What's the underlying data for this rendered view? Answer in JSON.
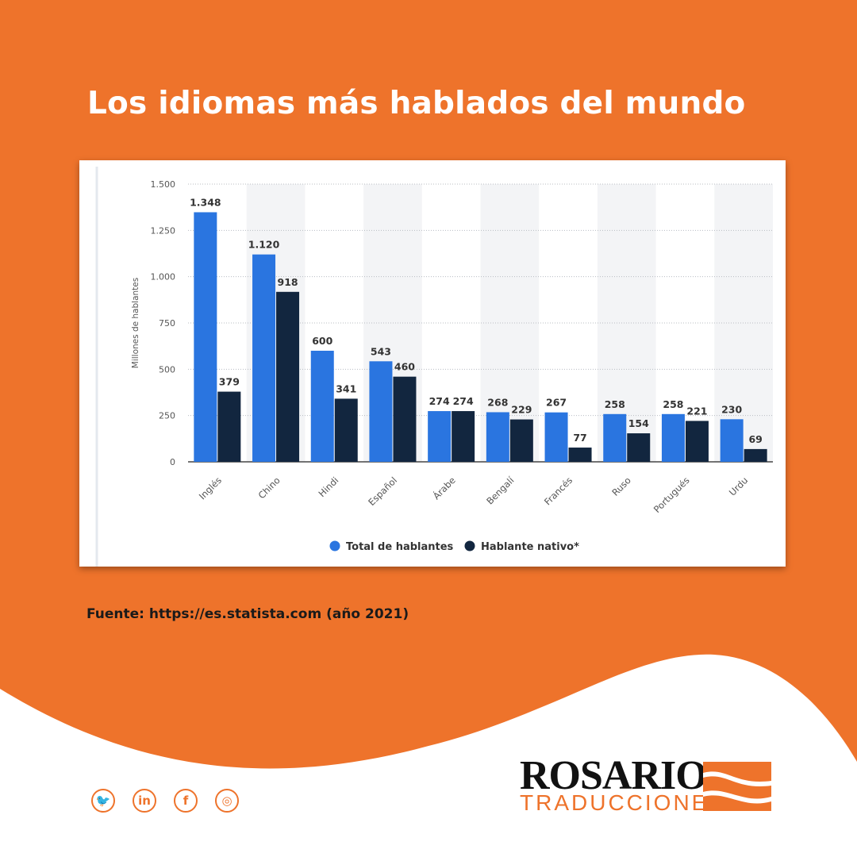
{
  "page": {
    "title": "Los idiomas más hablados del mundo",
    "source": "Fuente: https://es.statista.com (año 2021)",
    "colors": {
      "background": "#ee732b",
      "series_total": "#2a75e0",
      "series_native": "#12263f"
    }
  },
  "brand": {
    "name": "ROSARIO",
    "subtitle": "TRADUCCIONES"
  },
  "social": [
    {
      "name": "twitter-icon",
      "glyph": "🐦"
    },
    {
      "name": "linkedin-icon",
      "glyph": "in"
    },
    {
      "name": "facebook-icon",
      "glyph": "f"
    },
    {
      "name": "instagram-icon",
      "glyph": "◎"
    }
  ],
  "chart_data": {
    "type": "bar",
    "categories": [
      "Inglés",
      "Chino",
      "Hindi",
      "Español",
      "Árabe",
      "Bengalí",
      "Francés",
      "Ruso",
      "Portugués",
      "Urdu"
    ],
    "series": [
      {
        "name": "Total de hablantes",
        "color": "#2a75e0",
        "values": [
          1348,
          1120,
          600,
          543,
          274,
          268,
          267,
          258,
          258,
          230
        ],
        "labels": [
          "1.348",
          "1.120",
          "600",
          "543",
          "274",
          "268",
          "267",
          "258",
          "258",
          "230"
        ]
      },
      {
        "name": "Hablante nativo*",
        "color": "#12263f",
        "values": [
          379,
          918,
          341,
          460,
          274,
          229,
          77,
          154,
          221,
          69
        ],
        "labels": [
          "379",
          "918",
          "341",
          "460",
          "274",
          "229",
          "77",
          "154",
          "221",
          "69"
        ]
      }
    ],
    "ylabel": "Millones de hablantes",
    "xlabel": "",
    "ylim": [
      0,
      1500
    ],
    "yticks": [
      0,
      250,
      500,
      750,
      1000,
      1250,
      1500
    ],
    "ytick_labels": [
      "0",
      "250",
      "500",
      "750",
      "1.000",
      "1.250",
      "1.500"
    ],
    "grid": true,
    "legend": "bottom"
  }
}
